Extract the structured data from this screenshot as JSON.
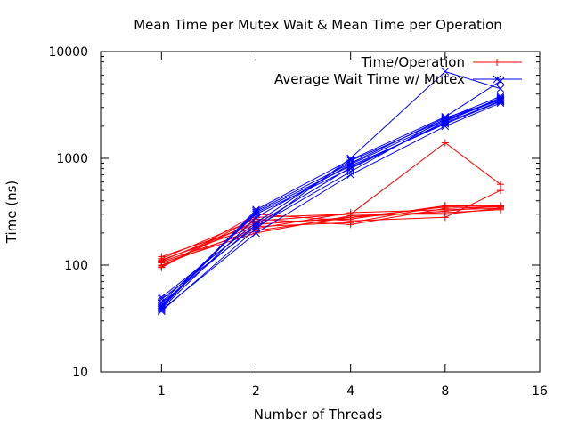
{
  "chart_data": {
    "type": "line",
    "title": "Mean Time per Mutex Wait & Mean Time per Operation",
    "xlabel": "Number of Threads",
    "ylabel": "Time (ns)",
    "x_scale": "log2",
    "y_scale": "log10",
    "xlim": [
      0.64,
      16
    ],
    "ylim": [
      10,
      10000
    ],
    "x_ticks": [
      1,
      2,
      4,
      8,
      16
    ],
    "x_tick_labels": [
      "1",
      "2",
      "4",
      "8",
      "16"
    ],
    "y_ticks": [
      10,
      100,
      1000,
      10000
    ],
    "y_tick_labels": [
      "10",
      "100",
      "1000",
      "10000"
    ],
    "x": [
      1,
      2,
      4,
      8,
      12
    ],
    "legend_position": "top-right",
    "series": [
      {
        "name": "Time/Operation",
        "color": "#ff0000",
        "marker": "plus",
        "runs": [
          [
            95,
            280,
            300,
            1400,
            570
          ],
          [
            110,
            250,
            270,
            360,
            350
          ],
          [
            100,
            220,
            310,
            330,
            340
          ],
          [
            120,
            240,
            280,
            350,
            360
          ],
          [
            95,
            300,
            260,
            280,
            500
          ],
          [
            105,
            200,
            290,
            310,
            330
          ],
          [
            115,
            270,
            240,
            340,
            350
          ],
          [
            98,
            260,
            300,
            300,
            340
          ],
          [
            108,
            210,
            280,
            320,
            360
          ],
          [
            112,
            230,
            250,
            360,
            355
          ]
        ]
      },
      {
        "name": "Average Wait Time w/ Mutex",
        "color": "#0000ff",
        "marker": "cross",
        "runs": [
          [
            37,
            220,
            1000,
            6500,
            4500
          ],
          [
            40,
            320,
            900,
            2400,
            3500
          ],
          [
            45,
            300,
            800,
            2200,
            3700
          ],
          [
            50,
            250,
            950,
            2300,
            3600
          ],
          [
            38,
            200,
            700,
            2000,
            3300
          ],
          [
            42,
            310,
            850,
            2100,
            3400
          ],
          [
            48,
            230,
            750,
            2350,
            3800
          ],
          [
            39,
            280,
            880,
            2250,
            3550
          ],
          [
            44,
            240,
            820,
            2150,
            3450
          ],
          [
            41,
            330,
            970,
            2450,
            5300
          ]
        ]
      }
    ]
  }
}
